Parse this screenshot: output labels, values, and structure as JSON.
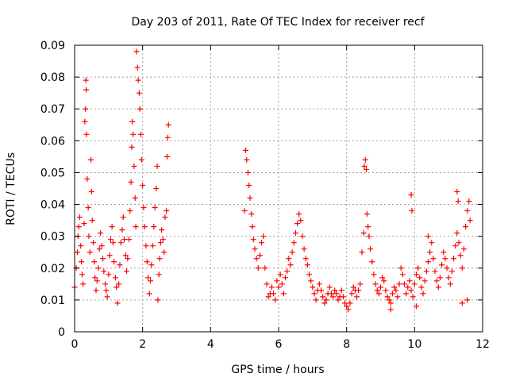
{
  "chart_data": {
    "type": "scatter",
    "title": "Day 203 of 2011, Rate Of TEC Index for receiver recf",
    "xlabel": "GPS time / hours",
    "ylabel": "ROTI / TECUs",
    "xlim": [
      0,
      12
    ],
    "ylim": [
      0,
      0.09
    ],
    "x_ticks": [
      0,
      2,
      4,
      6,
      8,
      10,
      12
    ],
    "y_ticks": [
      0,
      0.01,
      0.02,
      0.03,
      0.04,
      0.05,
      0.06,
      0.07,
      0.08,
      0.09
    ],
    "x_tick_labels": [
      "0",
      "2",
      "4",
      "6",
      "8",
      "10",
      "12"
    ],
    "y_tick_labels": [
      "0",
      "0.01",
      "0.02",
      "0.03",
      "0.04",
      "0.05",
      "0.06",
      "0.07",
      "0.08",
      "0.09"
    ],
    "grid": true,
    "marker": "+",
    "colors": {
      "series": "#ff0000",
      "grid": "#a0a0a0",
      "axis": "#000000"
    },
    "series": [
      {
        "points": [
          [
            0.0,
            0.014
          ],
          [
            0.05,
            0.02
          ],
          [
            0.08,
            0.025
          ],
          [
            0.1,
            0.03
          ],
          [
            0.12,
            0.033
          ],
          [
            0.15,
            0.036
          ],
          [
            0.18,
            0.027
          ],
          [
            0.2,
            0.022
          ],
          [
            0.22,
            0.018
          ],
          [
            0.25,
            0.015
          ],
          [
            0.28,
            0.034
          ],
          [
            0.3,
            0.066
          ],
          [
            0.32,
            0.07
          ],
          [
            0.33,
            0.079
          ],
          [
            0.34,
            0.076
          ],
          [
            0.35,
            0.062
          ],
          [
            0.37,
            0.048
          ],
          [
            0.4,
            0.039
          ],
          [
            0.42,
            0.03
          ],
          [
            0.45,
            0.025
          ],
          [
            0.48,
            0.054
          ],
          [
            0.5,
            0.044
          ],
          [
            0.52,
            0.035
          ],
          [
            0.55,
            0.028
          ],
          [
            0.58,
            0.022
          ],
          [
            0.6,
            0.017
          ],
          [
            0.63,
            0.013
          ],
          [
            0.66,
            0.016
          ],
          [
            0.7,
            0.02
          ],
          [
            0.73,
            0.026
          ],
          [
            0.76,
            0.031
          ],
          [
            0.8,
            0.027
          ],
          [
            0.83,
            0.023
          ],
          [
            0.86,
            0.019
          ],
          [
            0.9,
            0.015
          ],
          [
            0.93,
            0.013
          ],
          [
            0.96,
            0.011
          ],
          [
            1.0,
            0.018
          ],
          [
            1.03,
            0.024
          ],
          [
            1.06,
            0.029
          ],
          [
            1.1,
            0.033
          ],
          [
            1.13,
            0.028
          ],
          [
            1.16,
            0.022
          ],
          [
            1.2,
            0.017
          ],
          [
            1.23,
            0.014
          ],
          [
            1.26,
            0.009
          ],
          [
            1.3,
            0.015
          ],
          [
            1.33,
            0.021
          ],
          [
            1.36,
            0.028
          ],
          [
            1.4,
            0.032
          ],
          [
            1.43,
            0.036
          ],
          [
            1.46,
            0.029
          ],
          [
            1.5,
            0.024
          ],
          [
            1.53,
            0.019
          ],
          [
            1.56,
            0.023
          ],
          [
            1.6,
            0.029
          ],
          [
            1.63,
            0.038
          ],
          [
            1.66,
            0.047
          ],
          [
            1.68,
            0.058
          ],
          [
            1.7,
            0.066
          ],
          [
            1.72,
            0.062
          ],
          [
            1.75,
            0.052
          ],
          [
            1.78,
            0.042
          ],
          [
            1.8,
            0.033
          ],
          [
            1.82,
            0.088
          ],
          [
            1.85,
            0.083
          ],
          [
            1.87,
            0.079
          ],
          [
            1.9,
            0.075
          ],
          [
            1.92,
            0.07
          ],
          [
            1.95,
            0.062
          ],
          [
            1.97,
            0.054
          ],
          [
            2.0,
            0.046
          ],
          [
            2.03,
            0.039
          ],
          [
            2.06,
            0.033
          ],
          [
            2.1,
            0.027
          ],
          [
            2.13,
            0.022
          ],
          [
            2.16,
            0.017
          ],
          [
            2.2,
            0.012
          ],
          [
            2.23,
            0.016
          ],
          [
            2.26,
            0.021
          ],
          [
            2.3,
            0.027
          ],
          [
            2.33,
            0.033
          ],
          [
            2.36,
            0.039
          ],
          [
            2.4,
            0.045
          ],
          [
            2.43,
            0.052
          ],
          [
            2.45,
            0.01
          ],
          [
            2.48,
            0.018
          ],
          [
            2.5,
            0.023
          ],
          [
            2.53,
            0.028
          ],
          [
            2.56,
            0.032
          ],
          [
            2.6,
            0.029
          ],
          [
            2.63,
            0.025
          ],
          [
            2.66,
            0.036
          ],
          [
            2.7,
            0.038
          ],
          [
            2.72,
            0.055
          ],
          [
            2.74,
            0.061
          ],
          [
            2.76,
            0.065
          ],
          [
            5.0,
            0.038
          ],
          [
            5.03,
            0.057
          ],
          [
            5.06,
            0.054
          ],
          [
            5.1,
            0.05
          ],
          [
            5.13,
            0.046
          ],
          [
            5.16,
            0.042
          ],
          [
            5.2,
            0.037
          ],
          [
            5.23,
            0.033
          ],
          [
            5.26,
            0.029
          ],
          [
            5.3,
            0.026
          ],
          [
            5.35,
            0.023
          ],
          [
            5.4,
            0.02
          ],
          [
            5.45,
            0.024
          ],
          [
            5.5,
            0.028
          ],
          [
            5.55,
            0.03
          ],
          [
            5.6,
            0.02
          ],
          [
            5.65,
            0.015
          ],
          [
            5.7,
            0.011
          ],
          [
            5.75,
            0.012
          ],
          [
            5.8,
            0.014
          ],
          [
            5.85,
            0.012
          ],
          [
            5.9,
            0.01
          ],
          [
            5.95,
            0.016
          ],
          [
            6.0,
            0.014
          ],
          [
            6.05,
            0.018
          ],
          [
            6.1,
            0.015
          ],
          [
            6.15,
            0.012
          ],
          [
            6.2,
            0.017
          ],
          [
            6.25,
            0.019
          ],
          [
            6.3,
            0.023
          ],
          [
            6.35,
            0.021
          ],
          [
            6.4,
            0.025
          ],
          [
            6.45,
            0.028
          ],
          [
            6.5,
            0.031
          ],
          [
            6.55,
            0.034
          ],
          [
            6.6,
            0.037
          ],
          [
            6.65,
            0.035
          ],
          [
            6.7,
            0.03
          ],
          [
            6.75,
            0.026
          ],
          [
            6.8,
            0.023
          ],
          [
            6.85,
            0.021
          ],
          [
            6.9,
            0.018
          ],
          [
            6.95,
            0.016
          ],
          [
            7.0,
            0.014
          ],
          [
            7.05,
            0.012
          ],
          [
            7.1,
            0.01
          ],
          [
            7.15,
            0.013
          ],
          [
            7.2,
            0.015
          ],
          [
            7.25,
            0.013
          ],
          [
            7.3,
            0.011
          ],
          [
            7.35,
            0.009
          ],
          [
            7.4,
            0.01
          ],
          [
            7.45,
            0.012
          ],
          [
            7.5,
            0.014
          ],
          [
            7.55,
            0.012
          ],
          [
            7.6,
            0.011
          ],
          [
            7.65,
            0.013
          ],
          [
            7.7,
            0.012
          ],
          [
            7.75,
            0.01
          ],
          [
            7.8,
            0.011
          ],
          [
            7.85,
            0.013
          ],
          [
            7.9,
            0.011
          ],
          [
            7.95,
            0.009
          ],
          [
            8.0,
            0.008
          ],
          [
            8.05,
            0.007
          ],
          [
            8.1,
            0.009
          ],
          [
            8.15,
            0.012
          ],
          [
            8.2,
            0.014
          ],
          [
            8.25,
            0.013
          ],
          [
            8.3,
            0.011
          ],
          [
            8.35,
            0.013
          ],
          [
            8.4,
            0.015
          ],
          [
            8.45,
            0.025
          ],
          [
            8.5,
            0.031
          ],
          [
            8.52,
            0.052
          ],
          [
            8.55,
            0.054
          ],
          [
            8.58,
            0.051
          ],
          [
            8.6,
            0.037
          ],
          [
            8.63,
            0.033
          ],
          [
            8.66,
            0.03
          ],
          [
            8.7,
            0.026
          ],
          [
            8.75,
            0.022
          ],
          [
            8.8,
            0.018
          ],
          [
            8.85,
            0.015
          ],
          [
            8.9,
            0.013
          ],
          [
            8.95,
            0.012
          ],
          [
            9.0,
            0.014
          ],
          [
            9.05,
            0.017
          ],
          [
            9.1,
            0.016
          ],
          [
            9.15,
            0.013
          ],
          [
            9.2,
            0.011
          ],
          [
            9.25,
            0.01
          ],
          [
            9.3,
            0.009
          ],
          [
            9.35,
            0.012
          ],
          [
            9.4,
            0.014
          ],
          [
            9.45,
            0.013
          ],
          [
            9.5,
            0.011
          ],
          [
            9.55,
            0.015
          ],
          [
            9.6,
            0.02
          ],
          [
            9.65,
            0.018
          ],
          [
            9.7,
            0.015
          ],
          [
            9.75,
            0.012
          ],
          [
            9.8,
            0.014
          ],
          [
            9.85,
            0.016
          ],
          [
            9.9,
            0.013
          ],
          [
            9.95,
            0.011
          ],
          [
            10.0,
            0.015
          ],
          [
            10.05,
            0.018
          ],
          [
            10.1,
            0.02
          ],
          [
            10.15,
            0.017
          ],
          [
            10.2,
            0.014
          ],
          [
            10.25,
            0.012
          ],
          [
            10.3,
            0.016
          ],
          [
            10.35,
            0.019
          ],
          [
            10.4,
            0.022
          ],
          [
            10.45,
            0.025
          ],
          [
            10.5,
            0.028
          ],
          [
            10.55,
            0.023
          ],
          [
            10.6,
            0.019
          ],
          [
            10.65,
            0.016
          ],
          [
            10.7,
            0.014
          ],
          [
            10.75,
            0.017
          ],
          [
            10.8,
            0.021
          ],
          [
            10.85,
            0.025
          ],
          [
            10.9,
            0.023
          ],
          [
            10.95,
            0.02
          ],
          [
            11.0,
            0.017
          ],
          [
            11.05,
            0.015
          ],
          [
            11.1,
            0.019
          ],
          [
            11.15,
            0.023
          ],
          [
            11.2,
            0.027
          ],
          [
            11.25,
            0.031
          ],
          [
            11.3,
            0.028
          ],
          [
            11.35,
            0.024
          ],
          [
            11.4,
            0.02
          ],
          [
            11.45,
            0.026
          ],
          [
            11.5,
            0.033
          ],
          [
            11.55,
            0.038
          ],
          [
            11.6,
            0.041
          ],
          [
            11.63,
            0.035
          ],
          [
            9.9,
            0.043
          ],
          [
            9.92,
            0.038
          ],
          [
            11.25,
            0.044
          ],
          [
            11.28,
            0.041
          ],
          [
            10.4,
            0.03
          ],
          [
            11.55,
            0.01
          ],
          [
            11.4,
            0.009
          ],
          [
            10.05,
            0.008
          ],
          [
            9.3,
            0.007
          ]
        ]
      }
    ]
  }
}
